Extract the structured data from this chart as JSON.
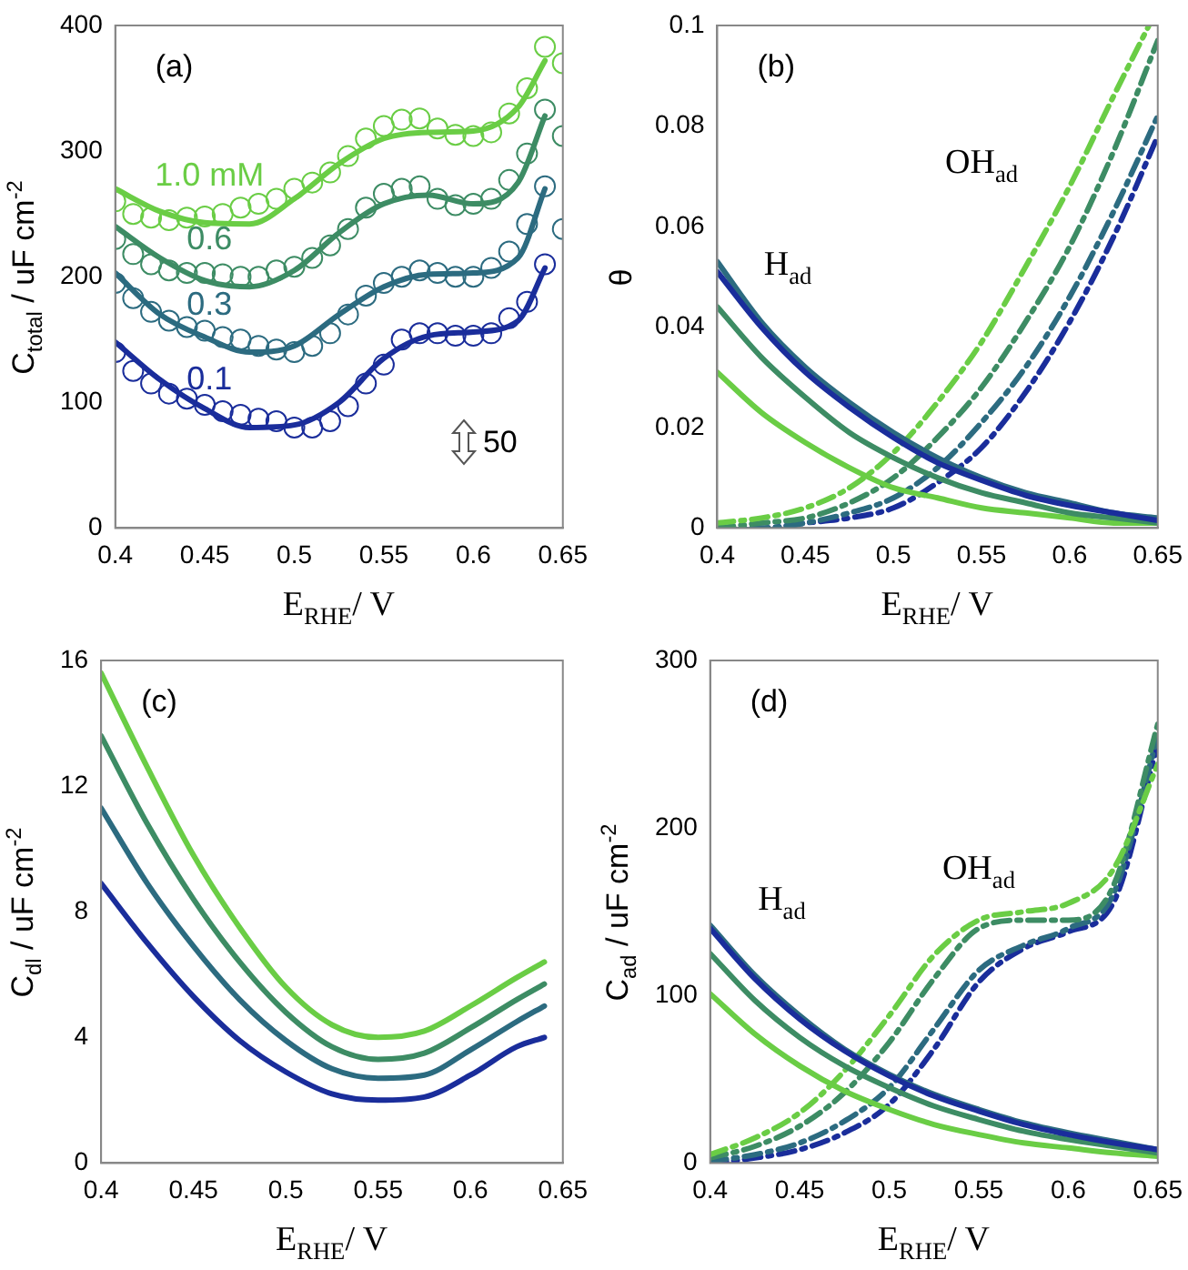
{
  "chart_data": [
    {
      "type": "line",
      "xlabel": "E$_{RHE}$/ V",
      "ylabel": "C$_{total}$ / uF cm$^{-2}$",
      "xlim": [
        0.4,
        0.65
      ],
      "xticks": [
        0.4,
        0.45,
        0.5,
        0.55,
        0.6,
        0.65
      ],
      "ylim": [
        0,
        400
      ],
      "yticks": [
        0,
        100,
        200,
        300,
        400
      ],
      "annotations": [
        "(a)",
        "50"
      ],
      "x": [
        0.4,
        0.425,
        0.45,
        0.475,
        0.5,
        0.525,
        0.55,
        0.575,
        0.6,
        0.625,
        0.64
      ],
      "series": [
        {
          "type": "scatter",
          "marker": "circle",
          "color": "#6acd45",
          "x": [
            0.4,
            0.41,
            0.42,
            0.43,
            0.44,
            0.45,
            0.46,
            0.47,
            0.48,
            0.49,
            0.5,
            0.51,
            0.52,
            0.53,
            0.54,
            0.55,
            0.56,
            0.57,
            0.58,
            0.59,
            0.6,
            0.61,
            0.62,
            0.63,
            0.64,
            0.65
          ],
          "values": [
            260,
            250,
            247,
            245,
            247,
            248,
            250,
            255,
            258,
            262,
            270,
            275,
            283,
            296,
            310,
            320,
            325,
            326,
            318,
            313,
            312,
            315,
            330,
            350,
            383,
            370
          ]
        },
        {
          "type": "scatter",
          "marker": "circle",
          "color": "#3d8c64",
          "x": [
            0.4,
            0.41,
            0.42,
            0.43,
            0.44,
            0.45,
            0.46,
            0.47,
            0.48,
            0.49,
            0.5,
            0.51,
            0.52,
            0.53,
            0.54,
            0.55,
            0.56,
            0.57,
            0.58,
            0.59,
            0.6,
            0.61,
            0.62,
            0.63,
            0.64,
            0.65
          ],
          "values": [
            230,
            218,
            210,
            205,
            203,
            203,
            202,
            200,
            200,
            205,
            208,
            215,
            225,
            238,
            255,
            266,
            270,
            272,
            262,
            257,
            258,
            262,
            277,
            298,
            333,
            312
          ]
        },
        {
          "type": "scatter",
          "marker": "circle",
          "color": "#2c6b80",
          "x": [
            0.4,
            0.41,
            0.42,
            0.43,
            0.44,
            0.45,
            0.46,
            0.47,
            0.48,
            0.49,
            0.5,
            0.51,
            0.52,
            0.53,
            0.54,
            0.55,
            0.56,
            0.57,
            0.58,
            0.59,
            0.6,
            0.61,
            0.62,
            0.63,
            0.64,
            0.65
          ],
          "values": [
            195,
            183,
            172,
            165,
            160,
            157,
            152,
            150,
            145,
            142,
            140,
            145,
            155,
            170,
            185,
            195,
            200,
            205,
            203,
            200,
            200,
            207,
            220,
            242,
            272,
            238
          ]
        },
        {
          "type": "scatter",
          "marker": "circle",
          "color": "#1a2d9b",
          "x": [
            0.4,
            0.41,
            0.42,
            0.43,
            0.44,
            0.45,
            0.46,
            0.47,
            0.48,
            0.49,
            0.5,
            0.51,
            0.52,
            0.53,
            0.54,
            0.55,
            0.56,
            0.57,
            0.58,
            0.59,
            0.6,
            0.61,
            0.62,
            0.63,
            0.64
          ],
          "values": [
            140,
            125,
            115,
            107,
            103,
            98,
            93,
            90,
            87,
            85,
            80,
            80,
            85,
            97,
            115,
            130,
            150,
            155,
            155,
            153,
            153,
            155,
            167,
            180,
            210
          ]
        },
        {
          "type": "line",
          "name": "1.0 mM",
          "marker": "none",
          "line_style": "solid",
          "color": "#6acd45",
          "values": [
            270,
            252,
            243,
            242,
            262,
            290,
            310,
            315,
            316,
            335,
            372
          ]
        },
        {
          "type": "line",
          "name": "0.6",
          "marker": "none",
          "line_style": "solid",
          "color": "#3d8c64",
          "values": [
            240,
            215,
            197,
            192,
            205,
            235,
            258,
            265,
            258,
            275,
            328
          ]
        },
        {
          "type": "line",
          "name": "0.3",
          "marker": "none",
          "line_style": "solid",
          "color": "#2c6b80",
          "values": [
            203,
            170,
            152,
            140,
            145,
            170,
            192,
            202,
            203,
            215,
            270
          ]
        },
        {
          "type": "line",
          "name": "0.1",
          "marker": "none",
          "line_style": "solid",
          "color": "#1a2d9b",
          "values": [
            148,
            118,
            95,
            80,
            82,
            100,
            135,
            153,
            156,
            165,
            207
          ]
        }
      ]
    },
    {
      "type": "line",
      "xlabel": "E$_{RHE}$/ V",
      "ylabel": "θ",
      "xlim": [
        0.4,
        0.65
      ],
      "xticks": [
        0.4,
        0.45,
        0.5,
        0.55,
        0.6,
        0.65
      ],
      "ylim": [
        0,
        0.1
      ],
      "yticks": [
        0,
        0.02,
        0.04,
        0.06,
        0.08,
        0.1
      ],
      "annotations": [
        "(b)",
        "H$_{ad}$",
        "OH$_{ad}$"
      ],
      "x": [
        0.4,
        0.425,
        0.45,
        0.475,
        0.5,
        0.525,
        0.55,
        0.575,
        0.6,
        0.625,
        0.65
      ],
      "series": [
        {
          "line_style": "solid",
          "color": "#1a2d9b",
          "values": [
            0.051,
            0.04,
            0.031,
            0.024,
            0.018,
            0.013,
            0.0095,
            0.0065,
            0.0045,
            0.003,
            0.0015
          ]
        },
        {
          "line_style": "solid",
          "color": "#2c6b80",
          "values": [
            0.053,
            0.041,
            0.032,
            0.025,
            0.019,
            0.014,
            0.01,
            0.007,
            0.005,
            0.003,
            0.002
          ]
        },
        {
          "line_style": "solid",
          "color": "#3d8c64",
          "values": [
            0.044,
            0.034,
            0.026,
            0.019,
            0.014,
            0.01,
            0.007,
            0.005,
            0.003,
            0.002,
            0.001
          ]
        },
        {
          "line_style": "solid",
          "color": "#6acd45",
          "values": [
            0.031,
            0.023,
            0.017,
            0.012,
            0.008,
            0.006,
            0.004,
            0.003,
            0.002,
            0.001,
            0.001
          ]
        },
        {
          "line_style": "dashed",
          "color": "#6acd45",
          "x": [
            0.4,
            0.425,
            0.45,
            0.475,
            0.5,
            0.525,
            0.55,
            0.575,
            0.6,
            0.625,
            0.645
          ],
          "values": [
            0.001,
            0.002,
            0.004,
            0.008,
            0.015,
            0.025,
            0.037,
            0.052,
            0.068,
            0.086,
            0.1
          ]
        },
        {
          "line_style": "dashed",
          "color": "#3d8c64",
          "values": [
            0,
            0.001,
            0.002,
            0.005,
            0.01,
            0.018,
            0.028,
            0.041,
            0.056,
            0.075,
            0.097
          ]
        },
        {
          "line_style": "dashed",
          "color": "#2c6b80",
          "values": [
            0,
            0,
            0.001,
            0.003,
            0.006,
            0.012,
            0.021,
            0.032,
            0.046,
            0.063,
            0.082
          ]
        },
        {
          "line_style": "dashed",
          "color": "#1a2d9b",
          "values": [
            0,
            0,
            0.001,
            0.002,
            0.004,
            0.009,
            0.016,
            0.027,
            0.041,
            0.058,
            0.078
          ]
        }
      ]
    },
    {
      "type": "line",
      "xlabel": "E$_{RHE}$/ V",
      "ylabel": "C$_{dl}$ / uF cm$^{-2}$",
      "xlim": [
        0.4,
        0.65
      ],
      "xticks": [
        0.4,
        0.45,
        0.5,
        0.55,
        0.6,
        0.65
      ],
      "ylim": [
        0,
        16
      ],
      "yticks": [
        0,
        4,
        8,
        12,
        16
      ],
      "annotations": [
        "(c)"
      ],
      "x": [
        0.4,
        0.425,
        0.45,
        0.475,
        0.5,
        0.525,
        0.55,
        0.575,
        0.6,
        0.625,
        0.64
      ],
      "series": [
        {
          "line_style": "solid",
          "color": "#6acd45",
          "values": [
            15.6,
            12.6,
            9.8,
            7.5,
            5.6,
            4.4,
            4.0,
            4.2,
            5.0,
            5.9,
            6.4
          ]
        },
        {
          "line_style": "solid",
          "color": "#3d8c64",
          "values": [
            13.6,
            10.8,
            8.4,
            6.4,
            4.8,
            3.7,
            3.3,
            3.5,
            4.3,
            5.2,
            5.7
          ]
        },
        {
          "line_style": "solid",
          "color": "#2c6b80",
          "values": [
            11.3,
            8.9,
            6.9,
            5.2,
            3.9,
            3.0,
            2.7,
            2.8,
            3.6,
            4.5,
            5.0
          ]
        },
        {
          "line_style": "solid",
          "color": "#1a2d9b",
          "values": [
            8.9,
            7.0,
            5.3,
            3.9,
            2.9,
            2.2,
            2.0,
            2.1,
            2.8,
            3.7,
            4.0
          ]
        }
      ]
    },
    {
      "type": "line",
      "xlabel": "E$_{RHE}$/ V",
      "ylabel": "C$_{ad}$ / uF cm$^{-2}$",
      "xlim": [
        0.4,
        0.65
      ],
      "xticks": [
        0.4,
        0.45,
        0.5,
        0.55,
        0.6,
        0.65
      ],
      "ylim": [
        0,
        300
      ],
      "yticks": [
        0,
        100,
        200,
        300
      ],
      "annotations": [
        "(d)",
        "H$_{ad}$",
        "OH$_{ad}$"
      ],
      "x": [
        0.4,
        0.425,
        0.45,
        0.475,
        0.5,
        0.525,
        0.55,
        0.575,
        0.6,
        0.625,
        0.65
      ],
      "series": [
        {
          "line_style": "solid",
          "color": "#1a2d9b",
          "values": [
            140,
            110,
            86,
            67,
            52,
            40,
            31,
            23,
            17,
            12,
            8
          ]
        },
        {
          "line_style": "solid",
          "color": "#2c6b80",
          "values": [
            142,
            112,
            88,
            68,
            53,
            41,
            32,
            24,
            18,
            13,
            8
          ]
        },
        {
          "line_style": "solid",
          "color": "#3d8c64",
          "values": [
            125,
            97,
            75,
            58,
            45,
            34,
            26,
            19,
            14,
            10,
            6
          ]
        },
        {
          "line_style": "solid",
          "color": "#6acd45",
          "values": [
            101,
            77,
            58,
            43,
            32,
            23,
            17,
            12,
            9,
            6,
            4
          ]
        },
        {
          "line_style": "dashed",
          "color": "#6acd45",
          "values": [
            5,
            15,
            30,
            55,
            88,
            124,
            145,
            150,
            155,
            175,
            238
          ]
        },
        {
          "line_style": "dashed",
          "color": "#3d8c64",
          "values": [
            3,
            10,
            22,
            42,
            72,
            110,
            140,
            145,
            145,
            165,
            262
          ]
        },
        {
          "line_style": "dashed",
          "color": "#2c6b80",
          "values": [
            1,
            5,
            12,
            25,
            45,
            80,
            115,
            130,
            140,
            160,
            255
          ]
        },
        {
          "line_style": "dashed",
          "color": "#1a2d9b",
          "values": [
            0,
            3,
            8,
            18,
            35,
            68,
            108,
            128,
            138,
            155,
            250
          ]
        }
      ]
    }
  ]
}
